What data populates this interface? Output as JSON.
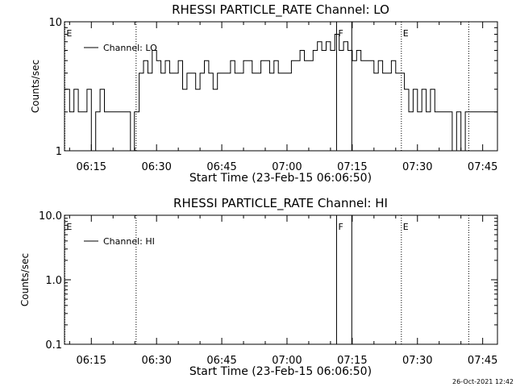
{
  "figure": {
    "footer_timestamp": "26-Oct-2021 12:42"
  },
  "chart_data": [
    {
      "type": "line",
      "title": "RHESSI PARTICLE_RATE Channel: LO",
      "xlabel": "Start Time (23-Feb-15 06:06:50)",
      "ylabel": "Counts/sec",
      "x_unit": "minutes since 06:00",
      "xlim": [
        8.83,
        108.4
      ],
      "ylim": [
        1,
        10
      ],
      "yscale": "log",
      "x_ticks": [
        {
          "value": 15,
          "label": "06:15"
        },
        {
          "value": 30,
          "label": "06:30"
        },
        {
          "value": 45,
          "label": "06:45"
        },
        {
          "value": 60,
          "label": "07:00"
        },
        {
          "value": 75,
          "label": "07:15"
        },
        {
          "value": 90,
          "label": "07:30"
        },
        {
          "value": 105,
          "label": "07:45"
        }
      ],
      "y_ticks": [
        {
          "value": 1,
          "label": "1"
        },
        {
          "value": 10,
          "label": "10"
        }
      ],
      "legend": {
        "position": "top-left",
        "entries": [
          "Channel: LO"
        ]
      },
      "markers": [
        {
          "x": 8.9,
          "style": "dotted",
          "label": "E"
        },
        {
          "x": 25.3,
          "style": "dotted",
          "label": ""
        },
        {
          "x": 71.4,
          "style": "solid",
          "label": "F"
        },
        {
          "x": 74.9,
          "style": "solid",
          "label": ""
        },
        {
          "x": 86.3,
          "style": "dotted",
          "label": "E"
        },
        {
          "x": 101.8,
          "style": "dotted",
          "label": ""
        }
      ],
      "series": [
        {
          "name": "Channel: LO",
          "x": [
            8.83,
            10.0,
            11.0,
            12.0,
            13.0,
            14.0,
            15.0,
            16.0,
            17.0,
            18.0,
            19.0,
            20.0,
            21.0,
            22.0,
            23.0,
            24.0,
            24.9,
            25.2,
            26.0,
            27.0,
            28.0,
            29.0,
            30.0,
            31.0,
            32.0,
            33.0,
            34.0,
            35.0,
            36.0,
            37.0,
            38.0,
            39.0,
            40.0,
            41.0,
            42.0,
            43.0,
            44.0,
            45.0,
            46.0,
            47.0,
            48.0,
            49.0,
            50.0,
            51.0,
            52.0,
            53.0,
            54.0,
            55.0,
            56.0,
            57.0,
            58.0,
            59.0,
            60.0,
            61.0,
            62.0,
            63.0,
            64.0,
            65.0,
            66.0,
            67.0,
            68.0,
            69.0,
            70.0,
            71.0,
            72.0,
            73.0,
            74.0,
            75.0,
            76.0,
            77.0,
            78.0,
            79.0,
            80.0,
            81.0,
            82.0,
            83.0,
            84.0,
            85.0,
            86.0,
            87.0,
            88.0,
            89.0,
            90.0,
            91.0,
            92.0,
            93.0,
            94.0,
            95.0,
            96.0,
            97.0,
            98.0,
            99.0,
            100.0,
            101.0,
            102.0,
            103.0,
            104.0,
            105.0,
            106.0,
            107.0,
            108.0
          ],
          "values": [
            3,
            2,
            3,
            2,
            2,
            3,
            1,
            2,
            3,
            2,
            2,
            2,
            2,
            2,
            2,
            1,
            2,
            2,
            4,
            5,
            4,
            6,
            5,
            4,
            5,
            4,
            4,
            5,
            3,
            4,
            4,
            3,
            4,
            5,
            4,
            3,
            4,
            4,
            4,
            5,
            4,
            4,
            5,
            5,
            4,
            4,
            5,
            5,
            4,
            5,
            4,
            4,
            4,
            5,
            5,
            6,
            5,
            5,
            6,
            7,
            6,
            7,
            6,
            8,
            6,
            7,
            6,
            5,
            6,
            5,
            5,
            5,
            4,
            5,
            4,
            4,
            5,
            4,
            4,
            3,
            2,
            3,
            2,
            3,
            2,
            3,
            2,
            2,
            2,
            2,
            1,
            2,
            1,
            2,
            2,
            2,
            2,
            2,
            2,
            2,
            2
          ]
        }
      ]
    },
    {
      "type": "line",
      "title": "RHESSI PARTICLE_RATE Channel: HI",
      "xlabel": "Start Time (23-Feb-15 06:06:50)",
      "ylabel": "Counts/sec",
      "x_unit": "minutes since 06:00",
      "xlim": [
        8.83,
        108.4
      ],
      "ylim": [
        0.1,
        10
      ],
      "yscale": "log",
      "x_ticks": [
        {
          "value": 15,
          "label": "06:15"
        },
        {
          "value": 30,
          "label": "06:30"
        },
        {
          "value": 45,
          "label": "06:45"
        },
        {
          "value": 60,
          "label": "07:00"
        },
        {
          "value": 75,
          "label": "07:15"
        },
        {
          "value": 90,
          "label": "07:30"
        },
        {
          "value": 105,
          "label": "07:45"
        }
      ],
      "y_ticks": [
        {
          "value": 0.1,
          "label": "0.1"
        },
        {
          "value": 1,
          "label": "1.0"
        },
        {
          "value": 10,
          "label": "10.0"
        }
      ],
      "legend": {
        "position": "top-left",
        "entries": [
          "Channel: HI"
        ]
      },
      "markers": [
        {
          "x": 8.9,
          "style": "dotted",
          "label": "E"
        },
        {
          "x": 25.3,
          "style": "dotted",
          "label": ""
        },
        {
          "x": 71.4,
          "style": "solid",
          "label": "F"
        },
        {
          "x": 74.9,
          "style": "solid",
          "label": ""
        },
        {
          "x": 86.3,
          "style": "dotted",
          "label": "E"
        },
        {
          "x": 101.8,
          "style": "dotted",
          "label": ""
        }
      ],
      "series": [
        {
          "name": "Channel: HI",
          "x": [],
          "values": []
        }
      ]
    }
  ]
}
